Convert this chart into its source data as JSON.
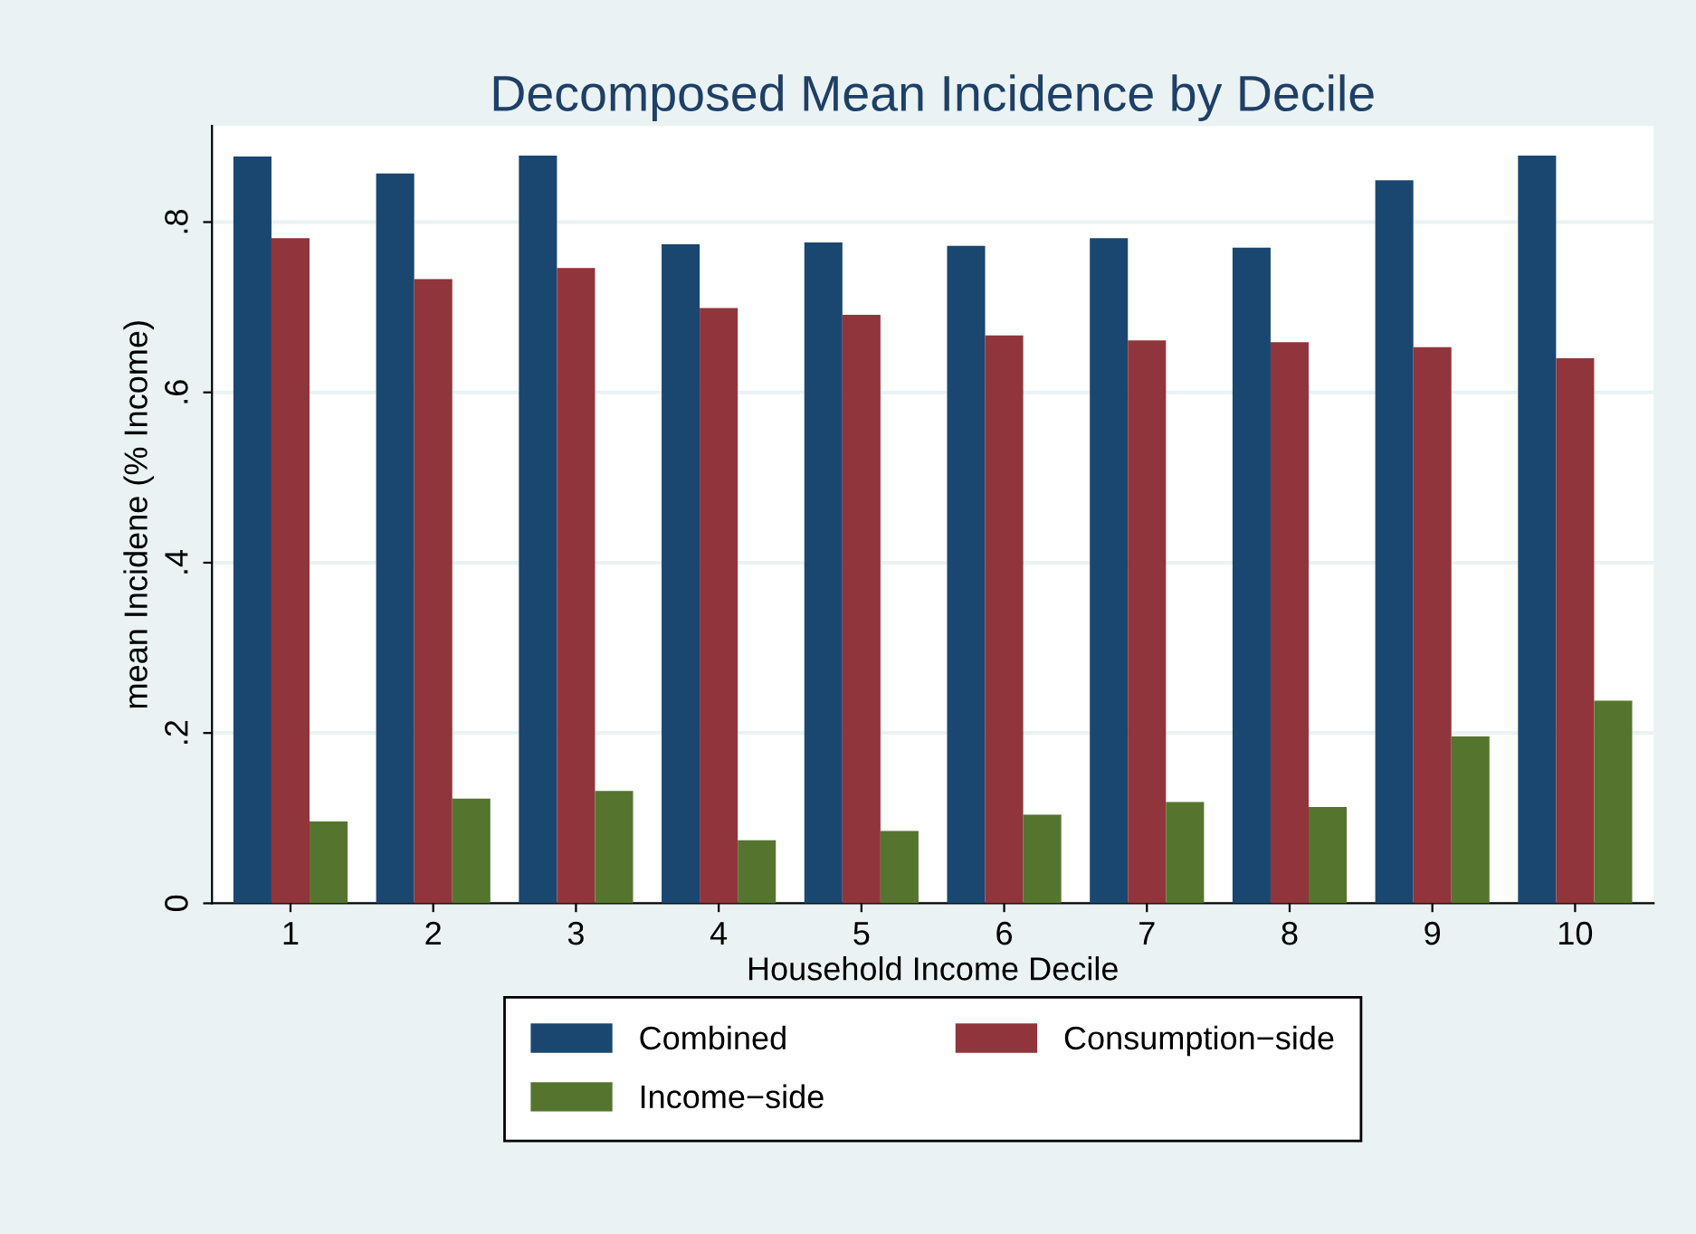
{
  "chart_data": {
    "type": "bar",
    "title": "Decomposed Mean Incidence by Decile",
    "xlabel": "Household Income Decile",
    "ylabel": "mean Incidene (% Income)",
    "categories": [
      "1",
      "2",
      "3",
      "4",
      "5",
      "6",
      "7",
      "8",
      "9",
      "10"
    ],
    "series": [
      {
        "name": "Combined",
        "color": "#1a476f",
        "values": [
          0.877,
          0.857,
          0.878,
          0.774,
          0.776,
          0.772,
          0.781,
          0.77,
          0.849,
          0.878
        ]
      },
      {
        "name": "Consumption−side",
        "color": "#90353b",
        "values": [
          0.781,
          0.733,
          0.746,
          0.699,
          0.691,
          0.667,
          0.661,
          0.659,
          0.653,
          0.64
        ]
      },
      {
        "name": "Income−side",
        "color": "#55752f",
        "values": [
          0.096,
          0.123,
          0.132,
          0.074,
          0.085,
          0.104,
          0.119,
          0.113,
          0.196,
          0.238
        ]
      }
    ],
    "ylim": [
      0,
      0.913
    ],
    "yticks": [
      {
        "value": 0,
        "label": "0"
      },
      {
        "value": 0.2,
        "label": ".2"
      },
      {
        "value": 0.4,
        "label": ".4"
      },
      {
        "value": 0.6,
        "label": ".6"
      },
      {
        "value": 0.8,
        "label": ".8"
      }
    ],
    "grid": "y",
    "legend": "bottom"
  }
}
